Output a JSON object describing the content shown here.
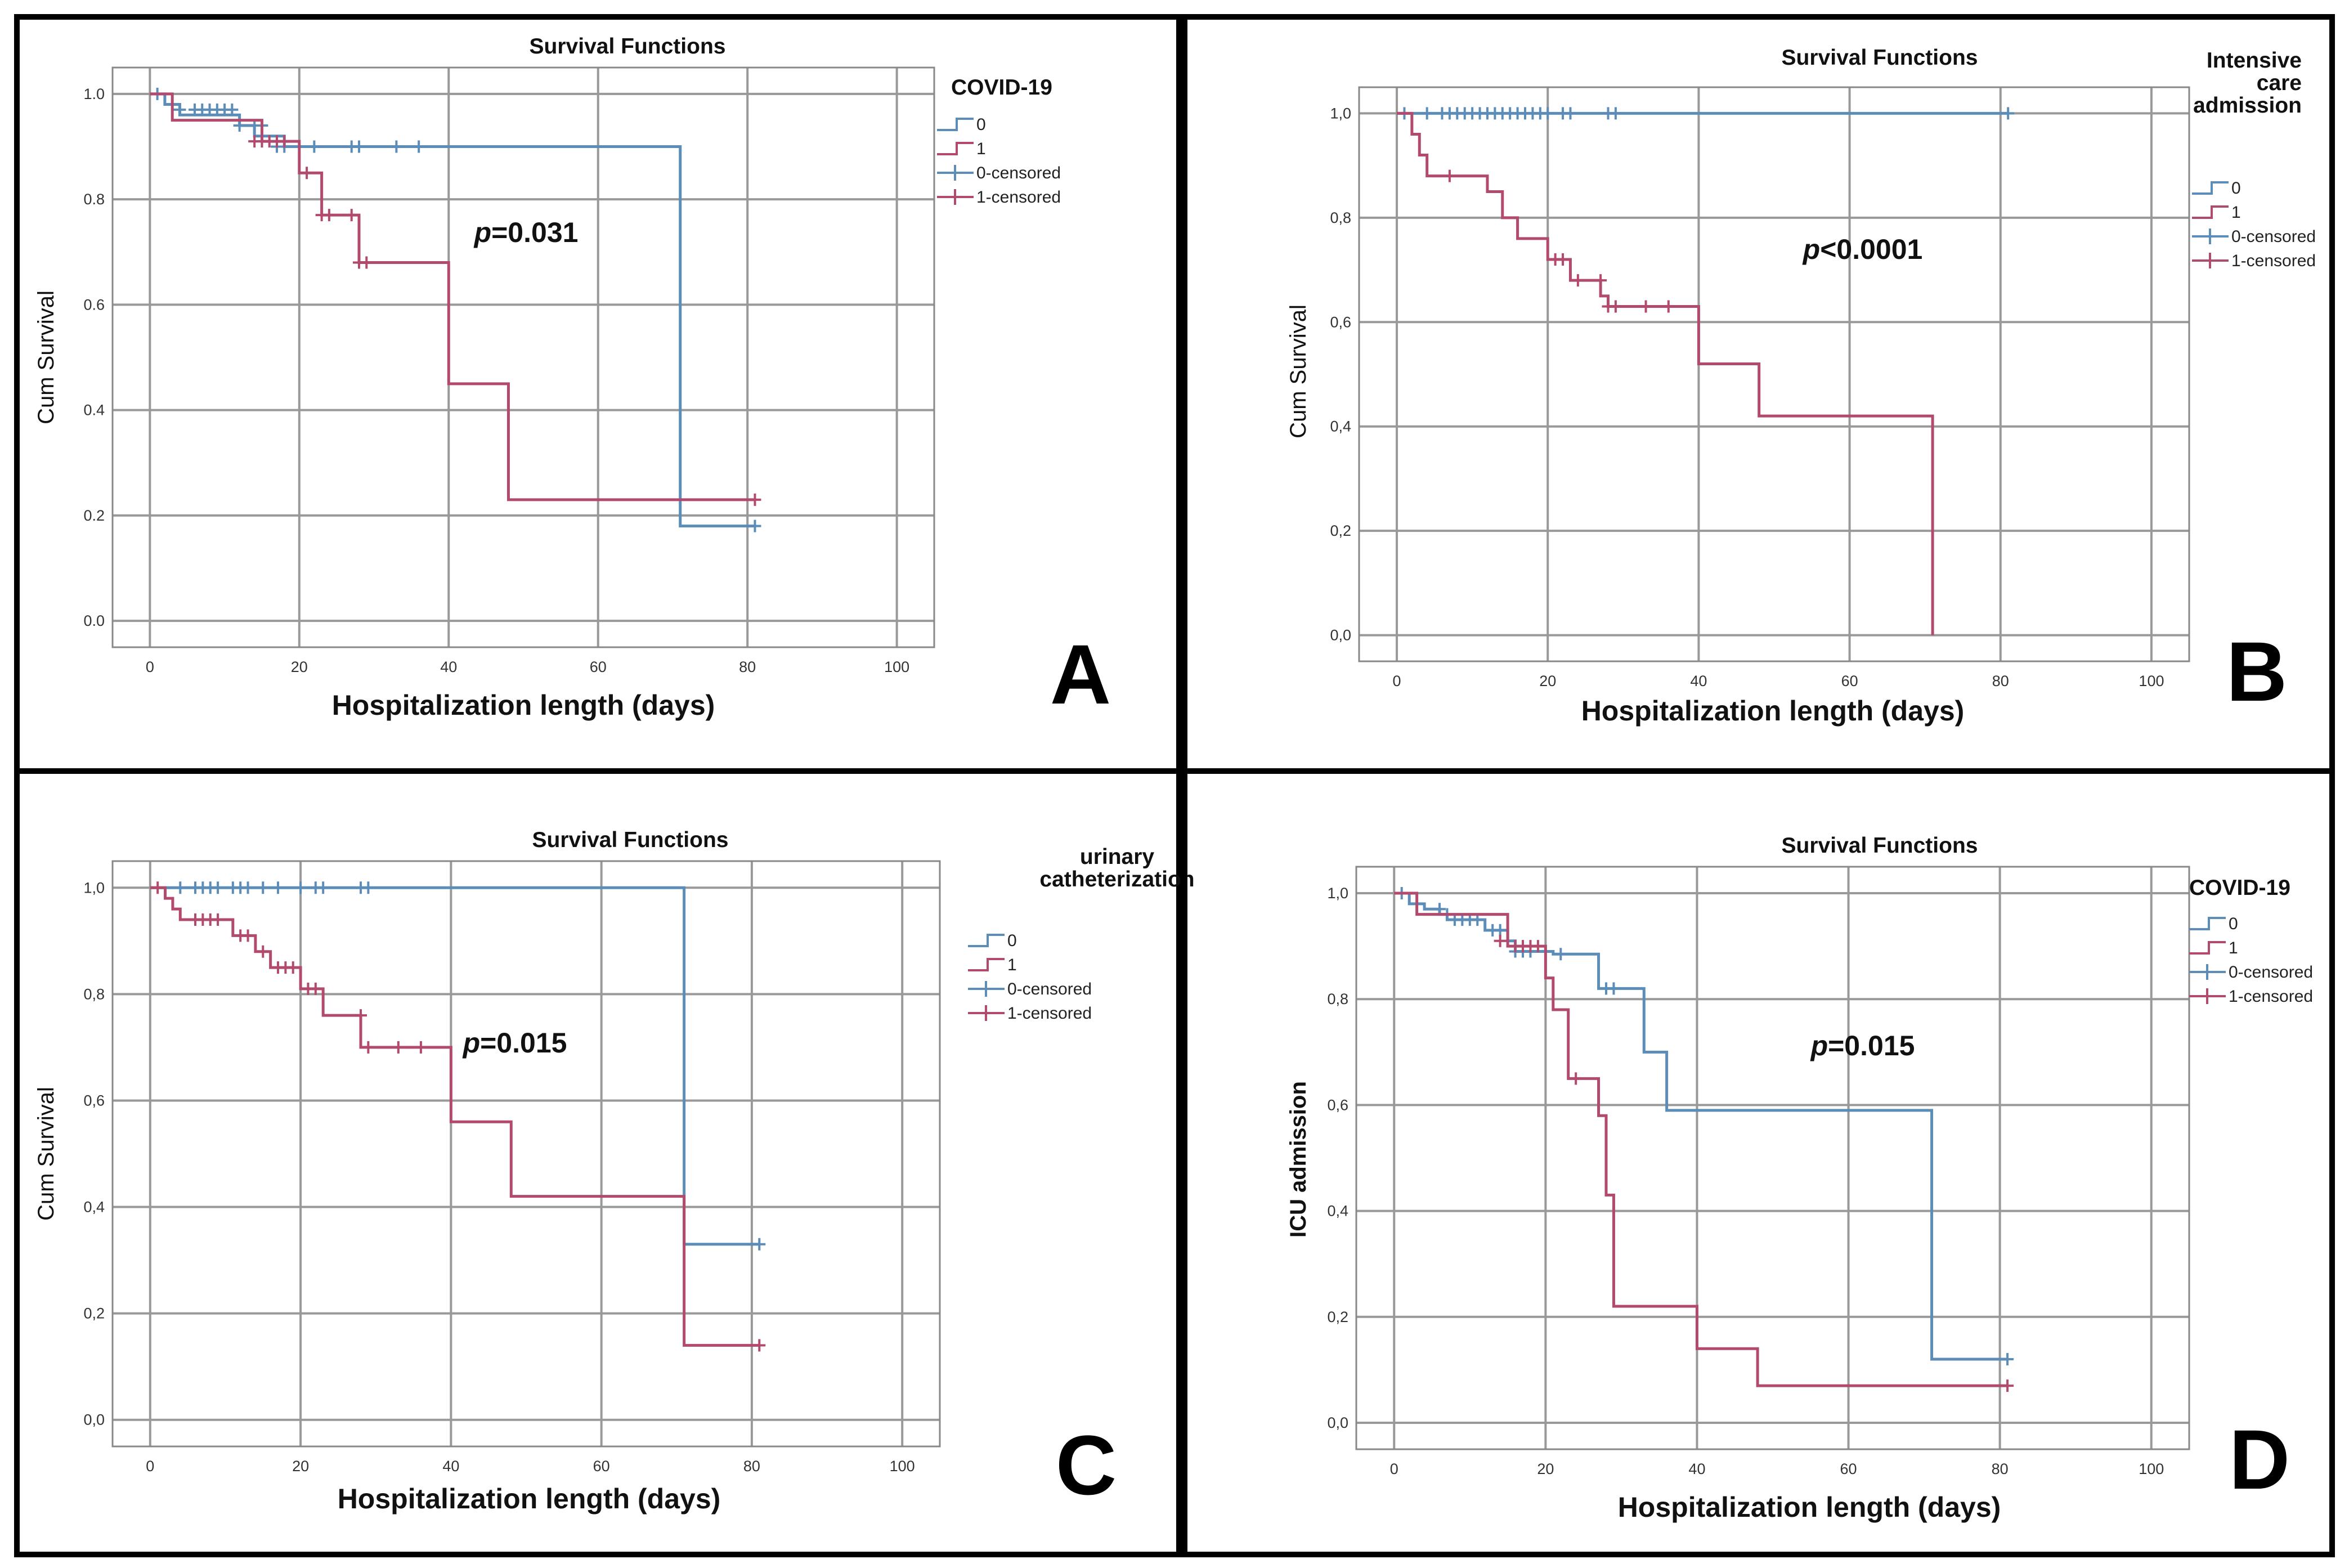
{
  "colors": {
    "series_0": "#5b8db8",
    "series_1": "#b24a6d",
    "frame": "#000000",
    "grid": "#999999"
  },
  "chart_data": [
    {
      "id": "A",
      "letter": "A",
      "type": "line",
      "title": "Survival Functions",
      "xlabel": "Hospitalization length (days)",
      "ylabel": "Cum Survival",
      "ylabel_bold": false,
      "xlim": [
        -5,
        105
      ],
      "ylim": [
        -0.05,
        1.05
      ],
      "xticks": [
        "0",
        "20",
        "40",
        "60",
        "80",
        "100"
      ],
      "yticks": [
        "0.0",
        "0.2",
        "0.4",
        "0.6",
        "0.8",
        "1.0"
      ],
      "grid": true,
      "legend": {
        "placement": "right",
        "title_lines": [
          "COVID-19"
        ],
        "items": [
          "0",
          "1",
          "0-censored",
          "1-censored"
        ]
      },
      "p_prefix": "p",
      "p_rest": "=0.031",
      "series": [
        {
          "step": [
            [
              0,
              1.0
            ],
            [
              2,
              0.98
            ],
            [
              4,
              0.96
            ],
            [
              12,
              0.94
            ],
            [
              14,
              0.92
            ],
            [
              18,
              0.9
            ],
            [
              71,
              0.9
            ],
            [
              71,
              0.18
            ],
            [
              81,
              0.18
            ]
          ],
          "censored": [
            [
              1,
              1.0
            ],
            [
              4,
              0.97
            ],
            [
              6,
              0.97
            ],
            [
              7,
              0.97
            ],
            [
              8,
              0.97
            ],
            [
              9,
              0.97
            ],
            [
              10,
              0.97
            ],
            [
              11,
              0.97
            ],
            [
              12,
              0.94
            ],
            [
              14,
              0.94
            ],
            [
              15,
              0.94
            ],
            [
              15,
              0.91
            ],
            [
              17,
              0.9
            ],
            [
              18,
              0.9
            ],
            [
              22,
              0.9
            ],
            [
              27,
              0.9
            ],
            [
              28,
              0.9
            ],
            [
              33,
              0.9
            ],
            [
              36,
              0.9
            ],
            [
              81,
              0.18
            ]
          ]
        },
        {
          "step": [
            [
              0,
              1.0
            ],
            [
              3,
              0.95
            ],
            [
              15,
              0.95
            ],
            [
              15,
              0.91
            ],
            [
              20,
              0.91
            ],
            [
              20,
              0.85
            ],
            [
              23,
              0.85
            ],
            [
              23,
              0.77
            ],
            [
              28,
              0.77
            ],
            [
              28,
              0.68
            ],
            [
              40,
              0.68
            ],
            [
              40,
              0.45
            ],
            [
              48,
              0.45
            ],
            [
              48,
              0.23
            ],
            [
              81,
              0.23
            ]
          ],
          "censored": [
            [
              14,
              0.91
            ],
            [
              15,
              0.91
            ],
            [
              16,
              0.91
            ],
            [
              17,
              0.91
            ],
            [
              18,
              0.91
            ],
            [
              21,
              0.85
            ],
            [
              23,
              0.77
            ],
            [
              24,
              0.77
            ],
            [
              27,
              0.77
            ],
            [
              28,
              0.68
            ],
            [
              29,
              0.68
            ],
            [
              81,
              0.23
            ]
          ]
        }
      ]
    },
    {
      "id": "B",
      "letter": "B",
      "type": "line",
      "title": "Survival Functions",
      "xlabel": "Hospitalization length (days)",
      "ylabel": "Cum Survival",
      "ylabel_bold": false,
      "xlim": [
        -5,
        105
      ],
      "ylim": [
        -0.05,
        1.05
      ],
      "xticks": [
        "0",
        "20",
        "40",
        "60",
        "80",
        "100"
      ],
      "yticks": [
        "0,0",
        "0,2",
        "0,4",
        "0,6",
        "0,8",
        "1,0"
      ],
      "grid": true,
      "legend": {
        "placement": "right",
        "title_lines": [
          "Intensive",
          "care",
          "admission"
        ],
        "items": [
          "0",
          "1",
          "0-censored",
          "1-censored"
        ]
      },
      "p_prefix": "p",
      "p_rest": "<0.0001",
      "series": [
        {
          "step": [
            [
              0,
              1.0
            ],
            [
              81,
              1.0
            ]
          ],
          "censored": [
            [
              1,
              1.0
            ],
            [
              4,
              1.0
            ],
            [
              6,
              1.0
            ],
            [
              7,
              1.0
            ],
            [
              8,
              1.0
            ],
            [
              9,
              1.0
            ],
            [
              10,
              1.0
            ],
            [
              11,
              1.0
            ],
            [
              12,
              1.0
            ],
            [
              13,
              1.0
            ],
            [
              14,
              1.0
            ],
            [
              15,
              1.0
            ],
            [
              16,
              1.0
            ],
            [
              17,
              1.0
            ],
            [
              18,
              1.0
            ],
            [
              19,
              1.0
            ],
            [
              20,
              1.0
            ],
            [
              22,
              1.0
            ],
            [
              23,
              1.0
            ],
            [
              28,
              1.0
            ],
            [
              29,
              1.0
            ],
            [
              81,
              1.0
            ]
          ]
        },
        {
          "step": [
            [
              0,
              1.0
            ],
            [
              2,
              0.96
            ],
            [
              3,
              0.92
            ],
            [
              4,
              0.88
            ],
            [
              12,
              0.88
            ],
            [
              12,
              0.85
            ],
            [
              14,
              0.8
            ],
            [
              16,
              0.76
            ],
            [
              20,
              0.76
            ],
            [
              20,
              0.72
            ],
            [
              23,
              0.72
            ],
            [
              23,
              0.68
            ],
            [
              27,
              0.68
            ],
            [
              27,
              0.65
            ],
            [
              28,
              0.63
            ],
            [
              40,
              0.63
            ],
            [
              40,
              0.52
            ],
            [
              48,
              0.52
            ],
            [
              48,
              0.42
            ],
            [
              71,
              0.42
            ],
            [
              71,
              0.0
            ]
          ],
          "censored": [
            [
              7,
              0.88
            ],
            [
              21,
              0.72
            ],
            [
              22,
              0.72
            ],
            [
              24,
              0.68
            ],
            [
              27,
              0.68
            ],
            [
              28,
              0.63
            ],
            [
              29,
              0.63
            ],
            [
              33,
              0.63
            ],
            [
              36,
              0.63
            ]
          ]
        }
      ]
    },
    {
      "id": "C",
      "letter": "C",
      "type": "line",
      "title": "Survival Functions",
      "xlabel": "Hospitalization length (days)",
      "ylabel": "Cum Survival",
      "ylabel_bold": false,
      "xlim": [
        -5,
        105
      ],
      "ylim": [
        -0.05,
        1.05
      ],
      "xticks": [
        "0",
        "20",
        "40",
        "60",
        "80",
        "100"
      ],
      "yticks": [
        "0,0",
        "0,2",
        "0,4",
        "0,6",
        "0,8",
        "1,0"
      ],
      "grid": true,
      "legend": {
        "placement": "right",
        "title_lines": [
          "urinary",
          "catheterization"
        ],
        "items": [
          "0",
          "1",
          "0-censored",
          "1-censored"
        ]
      },
      "p_prefix": "p",
      "p_rest": "=0.015",
      "series": [
        {
          "step": [
            [
              0,
              1.0
            ],
            [
              71,
              1.0
            ],
            [
              71,
              0.33
            ],
            [
              81,
              0.33
            ]
          ],
          "censored": [
            [
              4,
              1.0
            ],
            [
              6,
              1.0
            ],
            [
              7,
              1.0
            ],
            [
              8,
              1.0
            ],
            [
              9,
              1.0
            ],
            [
              11,
              1.0
            ],
            [
              12,
              1.0
            ],
            [
              13,
              1.0
            ],
            [
              15,
              1.0
            ],
            [
              17,
              1.0
            ],
            [
              20,
              1.0
            ],
            [
              22,
              1.0
            ],
            [
              23,
              1.0
            ],
            [
              28,
              1.0
            ],
            [
              29,
              1.0
            ],
            [
              81,
              0.33
            ]
          ]
        },
        {
          "step": [
            [
              0,
              1.0
            ],
            [
              2,
              0.98
            ],
            [
              3,
              0.96
            ],
            [
              4,
              0.94
            ],
            [
              11,
              0.94
            ],
            [
              11,
              0.91
            ],
            [
              14,
              0.88
            ],
            [
              16,
              0.85
            ],
            [
              20,
              0.85
            ],
            [
              20,
              0.81
            ],
            [
              23,
              0.81
            ],
            [
              23,
              0.76
            ],
            [
              28,
              0.76
            ],
            [
              28,
              0.7
            ],
            [
              40,
              0.7
            ],
            [
              40,
              0.56
            ],
            [
              48,
              0.56
            ],
            [
              48,
              0.42
            ],
            [
              71,
              0.42
            ],
            [
              71,
              0.14
            ],
            [
              81,
              0.14
            ]
          ],
          "censored": [
            [
              1,
              1.0
            ],
            [
              6,
              0.94
            ],
            [
              7,
              0.94
            ],
            [
              8,
              0.94
            ],
            [
              9,
              0.94
            ],
            [
              12,
              0.91
            ],
            [
              13,
              0.91
            ],
            [
              15,
              0.88
            ],
            [
              17,
              0.85
            ],
            [
              18,
              0.85
            ],
            [
              19,
              0.85
            ],
            [
              21,
              0.81
            ],
            [
              22,
              0.81
            ],
            [
              28,
              0.76
            ],
            [
              29,
              0.7
            ],
            [
              33,
              0.7
            ],
            [
              36,
              0.7
            ],
            [
              81,
              0.14
            ]
          ]
        }
      ]
    },
    {
      "id": "D",
      "letter": "D",
      "type": "line",
      "title": "Survival Functions",
      "xlabel": "Hospitalization length (days)",
      "ylabel": "ICU admission",
      "ylabel_bold": true,
      "xlim": [
        -5,
        105
      ],
      "ylim": [
        -0.05,
        1.05
      ],
      "xticks": [
        "0",
        "20",
        "40",
        "60",
        "80",
        "100"
      ],
      "yticks": [
        "0,0",
        "0,2",
        "0,4",
        "0,6",
        "0,8",
        "1,0"
      ],
      "grid": true,
      "legend": {
        "placement": "right",
        "title_lines": [
          "COVID-19"
        ],
        "items": [
          "0",
          "1",
          "0-censored",
          "1-censored"
        ]
      },
      "p_prefix": "p",
      "p_rest": "=0.015",
      "series": [
        {
          "step": [
            [
              0,
              1.0
            ],
            [
              2,
              0.98
            ],
            [
              4,
              0.97
            ],
            [
              6,
              0.96
            ],
            [
              7,
              0.95
            ],
            [
              12,
              0.95
            ],
            [
              12,
              0.93
            ],
            [
              15,
              0.91
            ],
            [
              16,
              0.89
            ],
            [
              20,
              0.89
            ],
            [
              21,
              0.885
            ],
            [
              27,
              0.885
            ],
            [
              27,
              0.82
            ],
            [
              33,
              0.82
            ],
            [
              33,
              0.7
            ],
            [
              36,
              0.7
            ],
            [
              36,
              0.59
            ],
            [
              71,
              0.59
            ],
            [
              71,
              0.12
            ],
            [
              81,
              0.12
            ]
          ],
          "censored": [
            [
              1,
              1.0
            ],
            [
              6,
              0.97
            ],
            [
              7,
              0.96
            ],
            [
              8,
              0.95
            ],
            [
              9,
              0.95
            ],
            [
              10,
              0.95
            ],
            [
              11,
              0.95
            ],
            [
              13,
              0.93
            ],
            [
              14,
              0.93
            ],
            [
              15,
              0.91
            ],
            [
              16,
              0.89
            ],
            [
              17,
              0.89
            ],
            [
              18,
              0.89
            ],
            [
              22,
              0.885
            ],
            [
              28,
              0.82
            ],
            [
              29,
              0.82
            ],
            [
              81,
              0.12
            ]
          ]
        },
        {
          "step": [
            [
              0,
              1.0
            ],
            [
              3,
              0.96
            ],
            [
              15,
              0.96
            ],
            [
              15,
              0.9
            ],
            [
              20,
              0.9
            ],
            [
              20,
              0.84
            ],
            [
              21,
              0.78
            ],
            [
              23,
              0.78
            ],
            [
              23,
              0.65
            ],
            [
              27,
              0.65
            ],
            [
              27,
              0.58
            ],
            [
              28,
              0.58
            ],
            [
              28,
              0.43
            ],
            [
              29,
              0.43
            ],
            [
              29,
              0.22
            ],
            [
              40,
              0.22
            ],
            [
              40,
              0.14
            ],
            [
              48,
              0.14
            ],
            [
              48,
              0.07
            ],
            [
              81,
              0.07
            ]
          ],
          "censored": [
            [
              14,
              0.91
            ],
            [
              16,
              0.9
            ],
            [
              17,
              0.9
            ],
            [
              18,
              0.9
            ],
            [
              19,
              0.9
            ],
            [
              24,
              0.65
            ],
            [
              81,
              0.07
            ]
          ]
        }
      ]
    }
  ]
}
